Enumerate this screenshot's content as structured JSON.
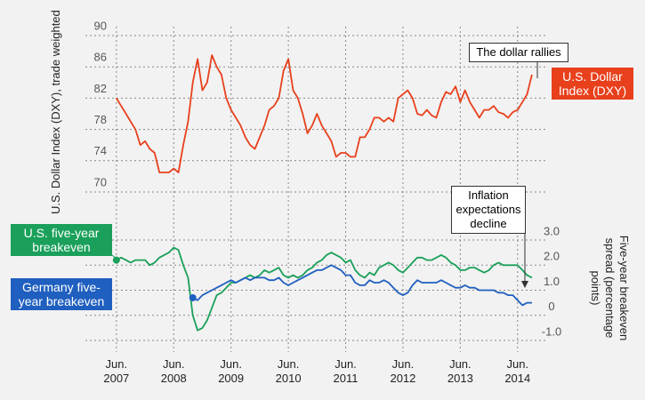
{
  "chart_data": {
    "type": "line",
    "y_label": "U.S. Dollar Index (DXY), trade weighted",
    "y2_label": "Five-year breakeven spread (percentage points)",
    "annotations": [
      "The dollar rallies",
      "Inflation expectations decline"
    ],
    "xlim": [
      "2007-01",
      "2014-12"
    ],
    "xticks": [
      {
        "value": "2007-06",
        "label": "Jun. 2007"
      },
      {
        "value": "2008-06",
        "label": "Jun. 2008"
      },
      {
        "value": "2009-06",
        "label": "Jun. 2009"
      },
      {
        "value": "2010-06",
        "label": "Jun. 2010"
      },
      {
        "value": "2011-06",
        "label": "Jun. 2011"
      },
      {
        "value": "2012-06",
        "label": "Jun. 2012"
      },
      {
        "value": "2013-06",
        "label": "Jun. 2013"
      },
      {
        "value": "2014-06",
        "label": "Jun. 2014"
      }
    ],
    "ylim": [
      70,
      90
    ],
    "yticks": [
      70,
      74,
      78,
      82,
      86,
      90
    ],
    "y2lim": [
      -1,
      3
    ],
    "y2ticks": [
      {
        "value": -1,
        "label": "-1.0"
      },
      0,
      {
        "value": 1,
        "label": "1.0"
      },
      {
        "value": 2,
        "label": "2.0"
      },
      {
        "value": 3,
        "label": "3.0"
      }
    ],
    "grid": true,
    "x": [
      "2007-06",
      "2007-07",
      "2007-08",
      "2007-09",
      "2007-10",
      "2007-11",
      "2007-12",
      "2008-01",
      "2008-02",
      "2008-03",
      "2008-04",
      "2008-05",
      "2008-06",
      "2008-07",
      "2008-08",
      "2008-09",
      "2008-10",
      "2008-11",
      "2008-12",
      "2009-01",
      "2009-02",
      "2009-03",
      "2009-04",
      "2009-05",
      "2009-06",
      "2009-07",
      "2009-08",
      "2009-09",
      "2009-10",
      "2009-11",
      "2009-12",
      "2010-01",
      "2010-02",
      "2010-03",
      "2010-04",
      "2010-05",
      "2010-06",
      "2010-07",
      "2010-08",
      "2010-09",
      "2010-10",
      "2010-11",
      "2010-12",
      "2011-01",
      "2011-02",
      "2011-03",
      "2011-04",
      "2011-05",
      "2011-06",
      "2011-07",
      "2011-08",
      "2011-09",
      "2011-10",
      "2011-11",
      "2011-12",
      "2012-01",
      "2012-02",
      "2012-03",
      "2012-04",
      "2012-05",
      "2012-06",
      "2012-07",
      "2012-08",
      "2012-09",
      "2012-10",
      "2012-11",
      "2012-12",
      "2013-01",
      "2013-02",
      "2013-03",
      "2013-04",
      "2013-05",
      "2013-06",
      "2013-07",
      "2013-08",
      "2013-09",
      "2013-10",
      "2013-11",
      "2013-12",
      "2014-01",
      "2014-02",
      "2014-03",
      "2014-04",
      "2014-05",
      "2014-06",
      "2014-07",
      "2014-08",
      "2014-09"
    ],
    "series": [
      {
        "name": "U.S. Dollar Index (DXY)",
        "color": "#e8401c",
        "values": [
          82,
          81,
          80,
          79,
          78,
          76,
          76.5,
          75.5,
          75,
          72.5,
          72.5,
          72.5,
          73,
          72.5,
          76,
          79,
          84,
          87,
          83,
          84,
          87.5,
          86,
          85,
          82,
          80.5,
          79.5,
          78.5,
          77,
          76,
          75.5,
          77,
          78.5,
          80.5,
          81,
          82,
          85.5,
          87,
          83,
          82,
          80,
          77.5,
          78.5,
          80,
          78.5,
          77.5,
          76.5,
          74.5,
          75,
          75,
          74.5,
          74.5,
          77,
          77,
          78,
          79.5,
          79.5,
          79,
          79.5,
          79,
          82,
          82.5,
          83,
          82,
          80,
          79.8,
          80.5,
          79.8,
          79.5,
          81.5,
          82.8,
          82.5,
          83.5,
          81.5,
          83,
          81.5,
          80.5,
          79.5,
          80.5,
          80.5,
          81,
          80.2,
          80,
          79.5,
          80.2,
          80.5,
          81.5,
          82.5,
          85
        ]
      },
      {
        "name": "U.S. five-year breakeven",
        "color": "#1aa05a",
        "axis": "y2",
        "values": [
          2.2,
          2.3,
          2.2,
          2.1,
          2.2,
          2.2,
          2.2,
          2.0,
          2.1,
          2.3,
          2.4,
          2.5,
          2.7,
          2.6,
          2.0,
          1.5,
          0.0,
          -0.6,
          -0.5,
          -0.2,
          0.3,
          0.8,
          0.9,
          1.1,
          1.3,
          1.3,
          1.4,
          1.5,
          1.6,
          1.5,
          1.6,
          1.8,
          1.7,
          1.8,
          1.9,
          1.6,
          1.5,
          1.6,
          1.5,
          1.6,
          1.8,
          1.9,
          2.1,
          2.2,
          2.4,
          2.5,
          2.4,
          2.3,
          2.1,
          2.2,
          1.8,
          1.6,
          1.5,
          1.7,
          1.6,
          1.9,
          2.0,
          2.1,
          2.0,
          1.8,
          1.7,
          1.9,
          2.1,
          2.3,
          2.3,
          2.2,
          2.2,
          2.3,
          2.4,
          2.3,
          2.1,
          2.0,
          1.8,
          1.8,
          1.9,
          1.9,
          1.8,
          1.7,
          1.8,
          2.0,
          2.1,
          2.0,
          2.0,
          2.0,
          2.0,
          1.8,
          1.6,
          1.5
        ]
      },
      {
        "name": "Germany five-year breakeven",
        "color": "#1f5fbf",
        "axis": "y2",
        "values": [
          null,
          null,
          null,
          null,
          null,
          null,
          null,
          null,
          null,
          null,
          null,
          null,
          null,
          null,
          null,
          null,
          0.7,
          0.6,
          0.8,
          0.9,
          1.0,
          1.1,
          1.2,
          1.3,
          1.4,
          1.3,
          1.4,
          1.5,
          1.4,
          1.5,
          1.5,
          1.5,
          1.4,
          1.4,
          1.5,
          1.3,
          1.2,
          1.3,
          1.4,
          1.5,
          1.6,
          1.7,
          1.8,
          1.8,
          1.9,
          2.0,
          1.9,
          1.8,
          1.6,
          1.6,
          1.3,
          1.2,
          1.2,
          1.4,
          1.3,
          1.3,
          1.4,
          1.3,
          1.1,
          0.9,
          0.8,
          0.9,
          1.2,
          1.4,
          1.3,
          1.3,
          1.3,
          1.3,
          1.4,
          1.3,
          1.2,
          1.1,
          1.1,
          1.2,
          1.1,
          1.1,
          1.0,
          1.0,
          1.0,
          1.0,
          0.9,
          0.9,
          0.8,
          0.8,
          0.6,
          0.4,
          0.5,
          0.5
        ]
      }
    ]
  }
}
